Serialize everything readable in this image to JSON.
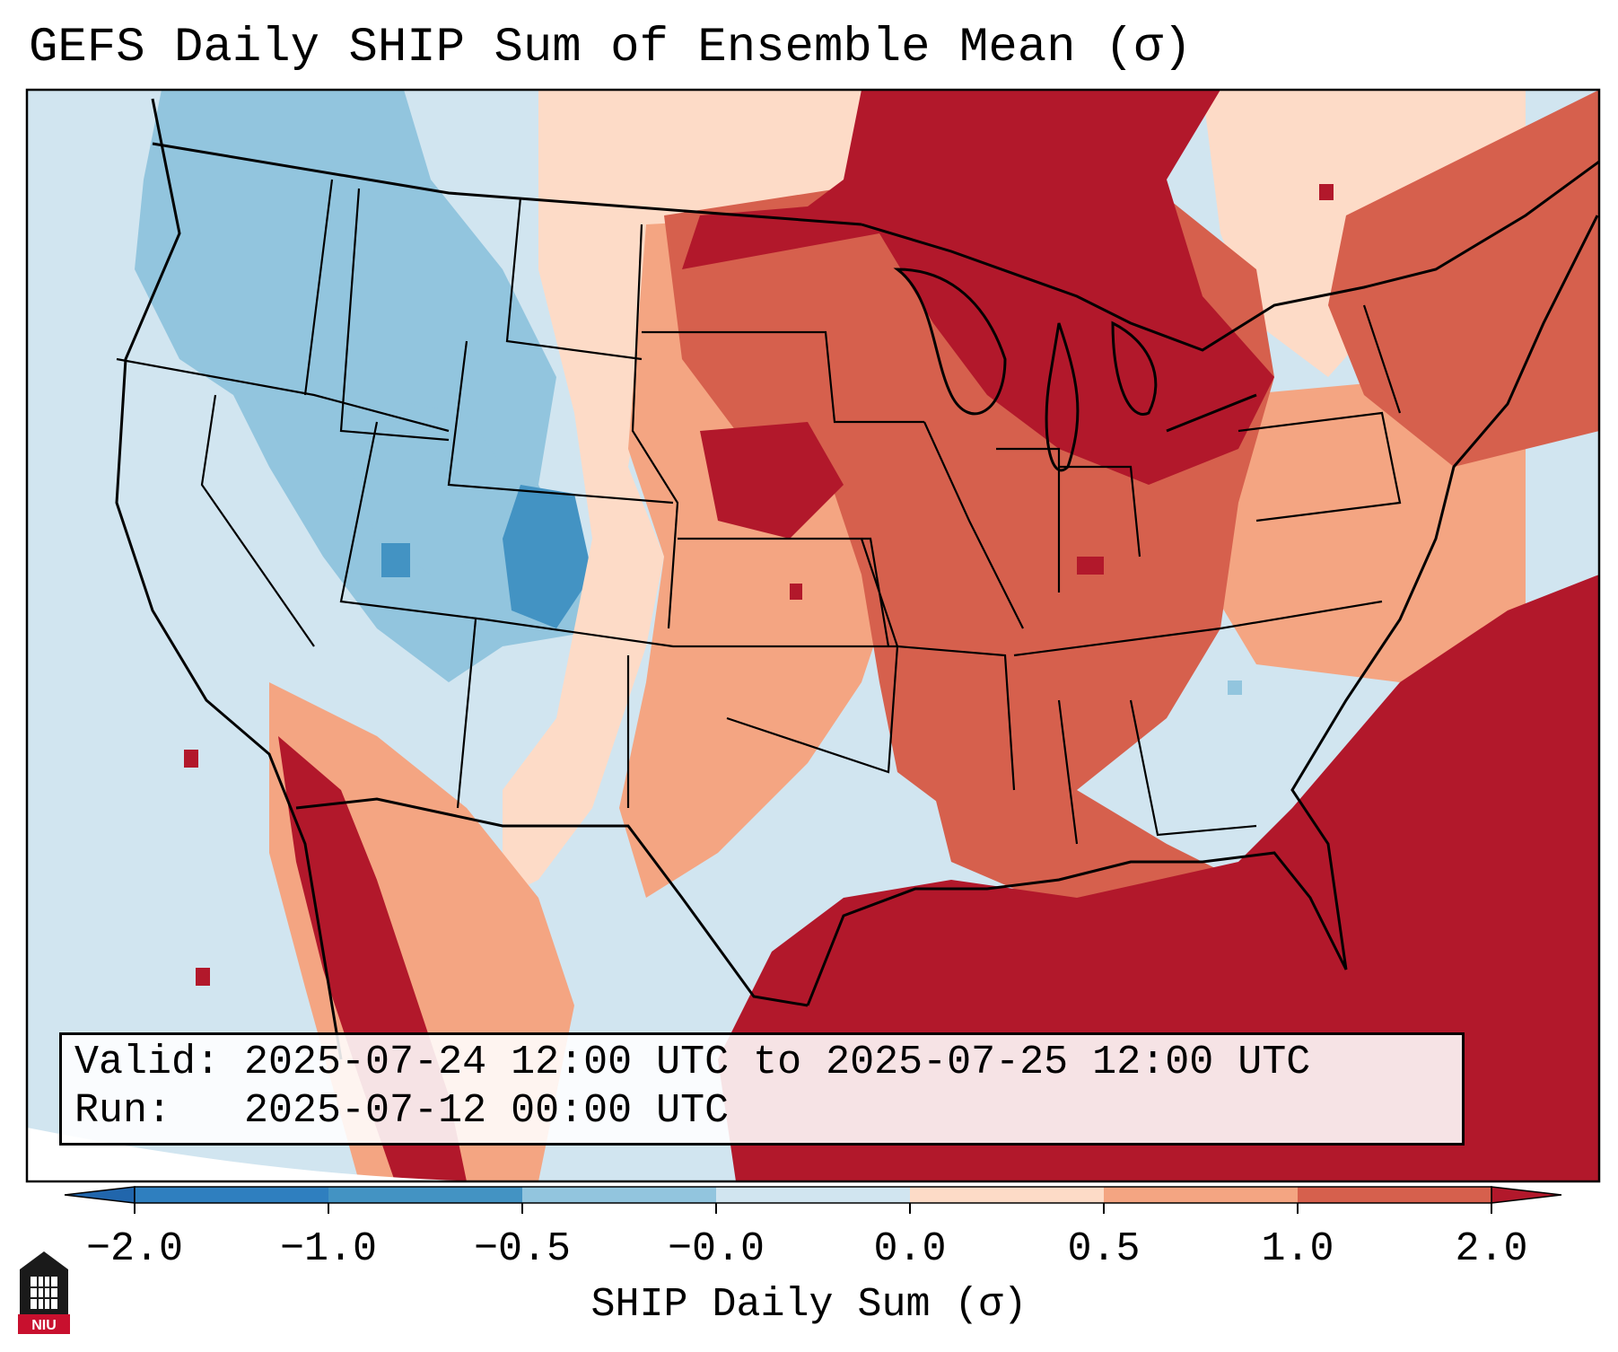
{
  "title": "GEFS Daily SHIP Sum of Ensemble Mean (σ)",
  "info": {
    "valid_line": "Valid: 2025-07-24 12:00 UTC to 2025-07-25 12:00 UTC",
    "run_line": "Run:   2025-07-12 00:00 UTC"
  },
  "colorbar": {
    "label": "SHIP Daily Sum (σ)",
    "ticks": [
      "−2.0",
      "−1.0",
      "−0.5",
      "−0.0",
      "0.0",
      "0.5",
      "1.0",
      "2.0"
    ],
    "colors": [
      "#2f7fbf",
      "#4393c3",
      "#92c5de",
      "#d1e5f0",
      "#fddbc7",
      "#f4a582",
      "#d6604d",
      "#b2182b"
    ],
    "extend_low_color": "#2166ac",
    "extend_high_color": "#b2182b"
  },
  "map": {
    "region": "Contiguous United States",
    "ocean_color": "#d1e5f0",
    "border_color": "#000000"
  },
  "logo": {
    "text": "NIU",
    "color": "#c8102e"
  }
}
